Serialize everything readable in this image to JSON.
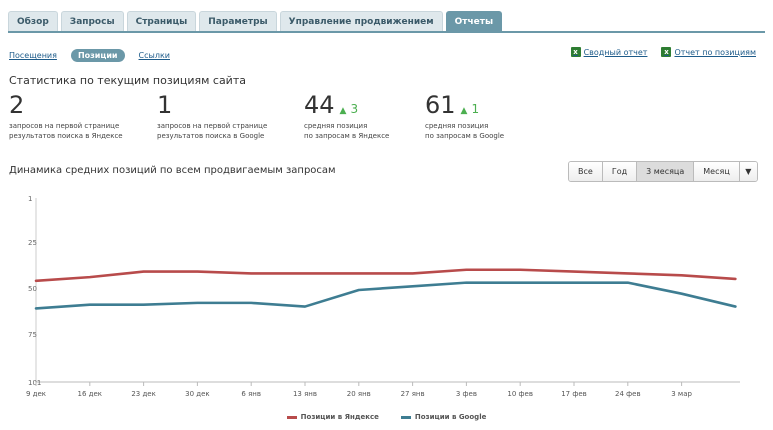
{
  "tabs": [
    {
      "label": "Обзор"
    },
    {
      "label": "Запросы"
    },
    {
      "label": "Страницы"
    },
    {
      "label": "Параметры"
    },
    {
      "label": "Управление продвижением"
    },
    {
      "label": "Отчеты",
      "active": true
    }
  ],
  "subnav": {
    "visits": "Посещения",
    "positions": "Позиции",
    "links": "Ссылки"
  },
  "exports": {
    "summary": "Сводный отчет",
    "positions_report": "Отчет по позициям"
  },
  "stats": {
    "title": "Статистика по текущим позициям сайта",
    "items": [
      {
        "value": "2",
        "delta": "",
        "desc1": "запросов на первой странице",
        "desc2": "результатов поиска в Яндексе"
      },
      {
        "value": "1",
        "delta": "",
        "desc1": "запросов на первой странице",
        "desc2": "результатов поиска в Google"
      },
      {
        "value": "44",
        "delta": "3",
        "desc1": "средняя позиция",
        "desc2": "по запросам в Яндексе"
      },
      {
        "value": "61",
        "delta": "1",
        "desc1": "средняя позиция",
        "desc2": "по запросам в Google"
      }
    ]
  },
  "chart_title": "Динамика средних позиций по всем продвигаемым запросам",
  "range_buttons": {
    "all": "Все",
    "year": "Год",
    "three_months": "3 месяца",
    "month": "Месяц"
  },
  "chart_data": {
    "type": "line",
    "x": [
      "9 дек",
      "16 дек",
      "23 дек",
      "30 дек",
      "6 янв",
      "13 янв",
      "20 янв",
      "27 янв",
      "3 фев",
      "10 фев",
      "17 фев",
      "24 фев",
      "3 мар",
      ""
    ],
    "xtick_labels": [
      "9 дек",
      "16 дек",
      "23 дек",
      "30 дек",
      "6 янв",
      "13 янв",
      "20 янв",
      "27 янв",
      "3 фев",
      "10 фев",
      "17 фев",
      "24 фев",
      "3 мар"
    ],
    "series": [
      {
        "name": "Позиции в Яндексе",
        "color": "#b84b4b",
        "values": [
          46,
          44,
          41,
          41,
          42,
          42,
          42,
          42,
          40,
          40,
          41,
          42,
          43,
          45
        ]
      },
      {
        "name": "Позиции в Google",
        "color": "#3e7d92",
        "values": [
          61,
          59,
          59,
          58,
          58,
          60,
          51,
          49,
          47,
          47,
          47,
          47,
          53,
          60
        ]
      }
    ],
    "yticks": [
      1,
      25,
      50,
      75,
      101
    ],
    "ylim": [
      1,
      101
    ],
    "y_inverted": true,
    "grid": false,
    "legend_position": "bottom-center"
  }
}
